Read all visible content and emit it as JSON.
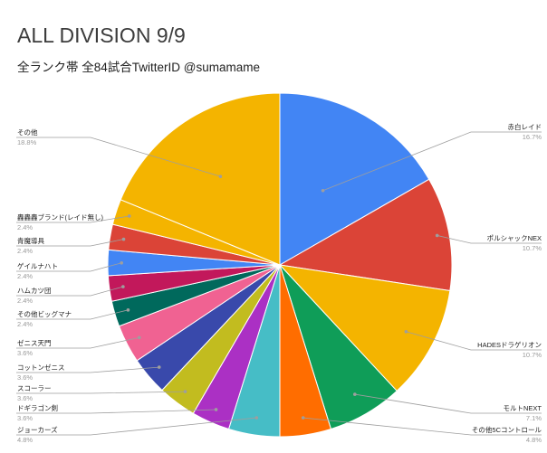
{
  "chart_data": {
    "type": "pie",
    "title": "ALL DIVISION 9/9",
    "subtitle": "全ランク帯 全84試合TwitterID @sumamame",
    "slices": [
      {
        "label": "赤白レイド",
        "pct_label": "16.7%",
        "value": 16.7,
        "color": "#4285f4"
      },
      {
        "label": "ポルシャックNEX",
        "pct_label": "10.7%",
        "value": 10.7,
        "color": "#db4437"
      },
      {
        "label": "HADESドラゲリオン",
        "pct_label": "10.7%",
        "value": 10.7,
        "color": "#f4b400"
      },
      {
        "label": "モルトNEXT",
        "pct_label": "7.1%",
        "value": 7.1,
        "color": "#0f9d58"
      },
      {
        "label": "その他5Cコントロール",
        "pct_label": "4.8%",
        "value": 4.8,
        "color": "#ff6d00"
      },
      {
        "label": "ジョーカーズ",
        "pct_label": "4.8%",
        "value": 4.8,
        "color": "#46bdc6"
      },
      {
        "label": "ドギラゴン剣",
        "pct_label": "3.6%",
        "value": 3.6,
        "color": "#ab30c4"
      },
      {
        "label": "スコーラー",
        "pct_label": "3.6%",
        "value": 3.6,
        "color": "#c2bc1f"
      },
      {
        "label": "コットンゼニス",
        "pct_label": "3.6%",
        "value": 3.6,
        "color": "#3949ab"
      },
      {
        "label": "ゼニス天門",
        "pct_label": "3.6%",
        "value": 3.6,
        "color": "#f06292"
      },
      {
        "label": "その他ビッグマナ",
        "pct_label": "2.4%",
        "value": 2.4,
        "color": "#00695c"
      },
      {
        "label": "ハムカツ団",
        "pct_label": "2.4%",
        "value": 2.4,
        "color": "#c2185b"
      },
      {
        "label": "ゲイルナハト",
        "pct_label": "2.4%",
        "value": 2.4,
        "color": "#4285f4"
      },
      {
        "label": "青魔導具",
        "pct_label": "2.4%",
        "value": 2.4,
        "color": "#db4437"
      },
      {
        "label": "轟轟轟ブランド(レイド無し)",
        "pct_label": "2.4%",
        "value": 2.4,
        "color": "#f4b400"
      },
      {
        "label": "その他",
        "pct_label": "18.8%",
        "value": 18.8,
        "color": "#f4b400"
      }
    ]
  }
}
